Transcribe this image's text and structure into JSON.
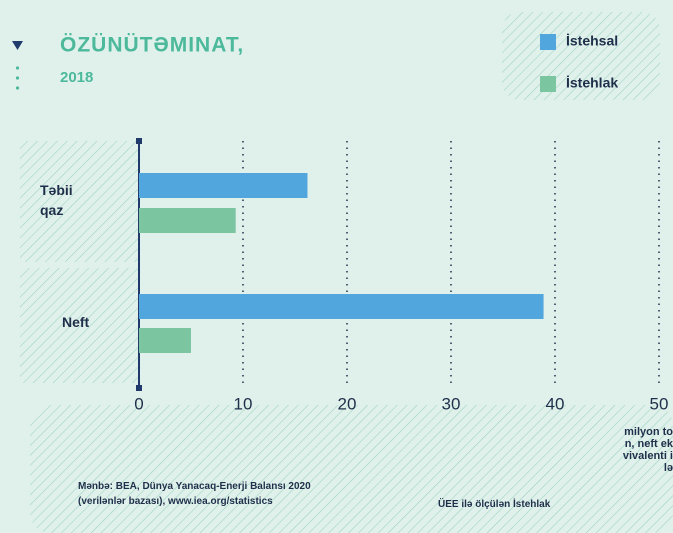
{
  "chart_data": {
    "type": "bar",
    "orientation": "horizontal",
    "title": "ÖZÜNÜTƏMINAT,",
    "subtitle": "2018",
    "categories": [
      "Təbii qaz",
      "Neft"
    ],
    "series": [
      {
        "name": "İstehsal",
        "color": "#52a6de",
        "values": [
          16.2,
          38.9
        ]
      },
      {
        "name": "İstehlak",
        "color": "#7cc5a1",
        "values": [
          9.3,
          5.0
        ]
      }
    ],
    "xlim": [
      0,
      50
    ],
    "xticks": [
      0,
      10,
      20,
      30,
      40,
      50
    ],
    "grid": true,
    "xlabel": "milyon ton, neft ekvivalenti ilə",
    "legend": "top-right",
    "source": "Mənbə: BEA, Dünya Yanacaq-Enerji Balansı 2020 (verilənlər bazası), www.iea.org/statistics",
    "note": "ÜEE ilə ölçülən İstehlak"
  }
}
